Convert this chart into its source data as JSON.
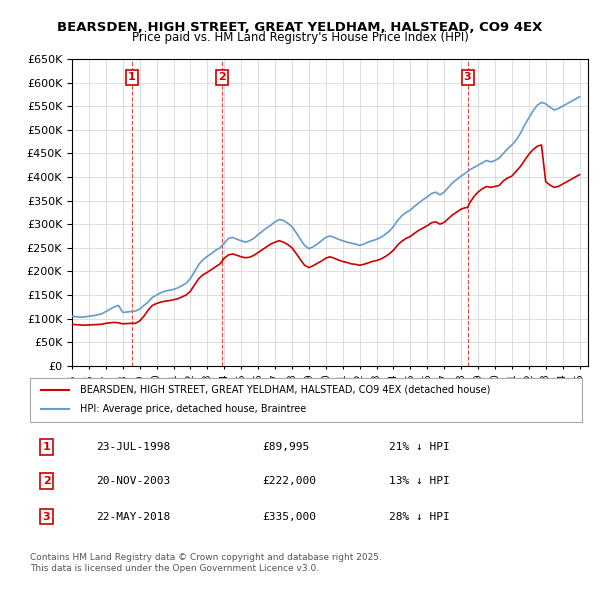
{
  "title": "BEARSDEN, HIGH STREET, GREAT YELDHAM, HALSTEAD, CO9 4EX",
  "subtitle": "Price paid vs. HM Land Registry's House Price Index (HPI)",
  "background_color": "#ffffff",
  "plot_bg_color": "#ffffff",
  "grid_color": "#dddddd",
  "sale_color": "#cc0000",
  "hpi_color": "#6699cc",
  "ylim": [
    0,
    650000
  ],
  "ytick_step": 50000,
  "xmin": 1995.0,
  "xmax": 2025.5,
  "sales": [
    {
      "label": "1",
      "date_str": "23-JUL-1998",
      "year": 1998.55,
      "price": 89995
    },
    {
      "label": "2",
      "date_str": "20-NOV-2003",
      "year": 2003.88,
      "price": 222000
    },
    {
      "label": "3",
      "date_str": "22-MAY-2018",
      "year": 2018.38,
      "price": 335000
    }
  ],
  "legend_sale_label": "BEARSDEN, HIGH STREET, GREAT YELDHAM, HALSTEAD, CO9 4EX (detached house)",
  "legend_hpi_label": "HPI: Average price, detached house, Braintree",
  "table_entries": [
    {
      "num": "1",
      "date": "23-JUL-1998",
      "price": "£89,995",
      "pct": "21% ↓ HPI"
    },
    {
      "num": "2",
      "date": "20-NOV-2003",
      "price": "£222,000",
      "pct": "13% ↓ HPI"
    },
    {
      "num": "3",
      "date": "22-MAY-2018",
      "price": "£335,000",
      "pct": "28% ↓ HPI"
    }
  ],
  "footer": "Contains HM Land Registry data © Crown copyright and database right 2025.\nThis data is licensed under the Open Government Licence v3.0.",
  "hpi_data": {
    "years": [
      1995.0,
      1995.25,
      1995.5,
      1995.75,
      1996.0,
      1996.25,
      1996.5,
      1996.75,
      1997.0,
      1997.25,
      1997.5,
      1997.75,
      1998.0,
      1998.25,
      1998.5,
      1998.75,
      1999.0,
      1999.25,
      1999.5,
      1999.75,
      2000.0,
      2000.25,
      2000.5,
      2000.75,
      2001.0,
      2001.25,
      2001.5,
      2001.75,
      2002.0,
      2002.25,
      2002.5,
      2002.75,
      2003.0,
      2003.25,
      2003.5,
      2003.75,
      2004.0,
      2004.25,
      2004.5,
      2004.75,
      2005.0,
      2005.25,
      2005.5,
      2005.75,
      2006.0,
      2006.25,
      2006.5,
      2006.75,
      2007.0,
      2007.25,
      2007.5,
      2007.75,
      2008.0,
      2008.25,
      2008.5,
      2008.75,
      2009.0,
      2009.25,
      2009.5,
      2009.75,
      2010.0,
      2010.25,
      2010.5,
      2010.75,
      2011.0,
      2011.25,
      2011.5,
      2011.75,
      2012.0,
      2012.25,
      2012.5,
      2012.75,
      2013.0,
      2013.25,
      2013.5,
      2013.75,
      2014.0,
      2014.25,
      2014.5,
      2014.75,
      2015.0,
      2015.25,
      2015.5,
      2015.75,
      2016.0,
      2016.25,
      2016.5,
      2016.75,
      2017.0,
      2017.25,
      2017.5,
      2017.75,
      2018.0,
      2018.25,
      2018.5,
      2018.75,
      2019.0,
      2019.25,
      2019.5,
      2019.75,
      2020.0,
      2020.25,
      2020.5,
      2020.75,
      2021.0,
      2021.25,
      2021.5,
      2021.75,
      2022.0,
      2022.25,
      2022.5,
      2022.75,
      2023.0,
      2023.25,
      2023.5,
      2023.75,
      2024.0,
      2024.25,
      2024.5,
      2024.75,
      2025.0
    ],
    "values": [
      105000,
      104000,
      103000,
      103500,
      105000,
      106000,
      108000,
      110000,
      115000,
      120000,
      125000,
      128000,
      113000,
      114000,
      115000,
      116000,
      120000,
      128000,
      135000,
      145000,
      150000,
      155000,
      158000,
      160000,
      162000,
      165000,
      170000,
      175000,
      185000,
      200000,
      215000,
      225000,
      232000,
      238000,
      245000,
      250000,
      260000,
      270000,
      272000,
      268000,
      265000,
      262000,
      265000,
      270000,
      278000,
      285000,
      292000,
      298000,
      305000,
      310000,
      308000,
      302000,
      295000,
      282000,
      268000,
      255000,
      248000,
      252000,
      258000,
      265000,
      272000,
      275000,
      272000,
      268000,
      265000,
      262000,
      260000,
      258000,
      255000,
      258000,
      262000,
      265000,
      268000,
      272000,
      278000,
      285000,
      295000,
      308000,
      318000,
      325000,
      330000,
      338000,
      345000,
      352000,
      358000,
      365000,
      368000,
      362000,
      368000,
      378000,
      388000,
      395000,
      402000,
      408000,
      415000,
      420000,
      425000,
      430000,
      435000,
      432000,
      435000,
      440000,
      450000,
      460000,
      468000,
      478000,
      492000,
      510000,
      525000,
      540000,
      552000,
      558000,
      555000,
      548000,
      542000,
      545000,
      550000,
      555000,
      560000,
      565000,
      570000
    ]
  },
  "sale_data": {
    "years": [
      1995.0,
      1995.25,
      1995.5,
      1995.75,
      1996.0,
      1996.25,
      1996.5,
      1996.75,
      1997.0,
      1997.25,
      1997.5,
      1997.75,
      1998.0,
      1998.25,
      1998.5,
      1998.55,
      1998.75,
      1999.0,
      1999.25,
      1999.5,
      1999.75,
      2000.0,
      2000.25,
      2000.5,
      2000.75,
      2001.0,
      2001.25,
      2001.5,
      2001.75,
      2002.0,
      2002.25,
      2002.5,
      2002.75,
      2003.0,
      2003.25,
      2003.5,
      2003.75,
      2003.88,
      2004.0,
      2004.25,
      2004.5,
      2004.75,
      2005.0,
      2005.25,
      2005.5,
      2005.75,
      2006.0,
      2006.25,
      2006.5,
      2006.75,
      2007.0,
      2007.25,
      2007.5,
      2007.75,
      2008.0,
      2008.25,
      2008.5,
      2008.75,
      2009.0,
      2009.25,
      2009.5,
      2009.75,
      2010.0,
      2010.25,
      2010.5,
      2010.75,
      2011.0,
      2011.25,
      2011.5,
      2011.75,
      2012.0,
      2012.25,
      2012.5,
      2012.75,
      2013.0,
      2013.25,
      2013.5,
      2013.75,
      2014.0,
      2014.25,
      2014.5,
      2014.75,
      2015.0,
      2015.25,
      2015.5,
      2015.75,
      2016.0,
      2016.25,
      2016.5,
      2016.75,
      2017.0,
      2017.25,
      2017.5,
      2017.75,
      2018.0,
      2018.25,
      2018.38,
      2018.5,
      2018.75,
      2019.0,
      2019.25,
      2019.5,
      2019.75,
      2020.0,
      2020.25,
      2020.5,
      2020.75,
      2021.0,
      2021.25,
      2021.5,
      2021.75,
      2022.0,
      2022.25,
      2022.5,
      2022.75,
      2023.0,
      2023.25,
      2023.5,
      2023.75,
      2024.0,
      2024.25,
      2024.5,
      2024.75,
      2025.0
    ],
    "values": [
      88000,
      87000,
      86500,
      86000,
      86500,
      87000,
      87500,
      88000,
      90000,
      91000,
      92000,
      91000,
      89000,
      89500,
      89995,
      89995,
      90000,
      95000,
      105000,
      118000,
      128000,
      132000,
      135000,
      137000,
      138000,
      140000,
      142000,
      146000,
      150000,
      158000,
      172000,
      185000,
      193000,
      198000,
      204000,
      210000,
      216000,
      222000,
      228000,
      235000,
      237000,
      234000,
      231000,
      229000,
      230000,
      234000,
      240000,
      246000,
      252000,
      258000,
      262000,
      265000,
      262000,
      257000,
      250000,
      238000,
      225000,
      213000,
      208000,
      212000,
      217000,
      222000,
      228000,
      231000,
      228000,
      224000,
      221000,
      219000,
      216000,
      215000,
      213000,
      215000,
      218000,
      221000,
      223000,
      226000,
      231000,
      237000,
      245000,
      256000,
      264000,
      270000,
      274000,
      281000,
      287000,
      292000,
      297000,
      303000,
      305000,
      300000,
      304000,
      312000,
      320000,
      326000,
      332000,
      335000,
      335000,
      345000,
      358000,
      368000,
      375000,
      380000,
      378000,
      380000,
      382000,
      392000,
      398000,
      402000,
      412000,
      422000,
      435000,
      448000,
      458000,
      465000,
      468000,
      390000,
      383000,
      378000,
      380000,
      385000,
      390000,
      395000,
      400000,
      405000
    ]
  }
}
